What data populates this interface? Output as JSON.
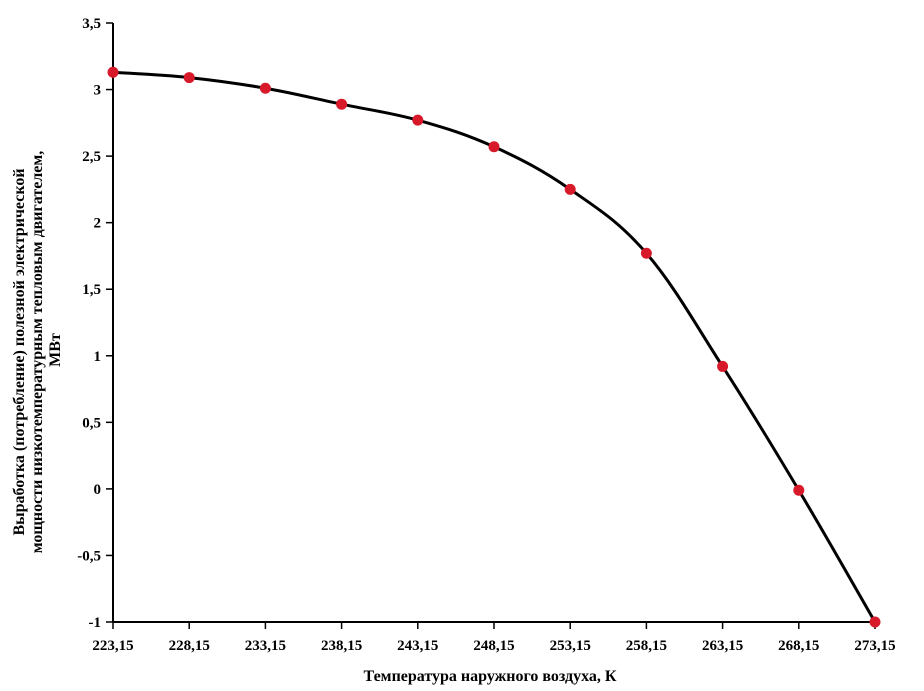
{
  "chart_data": {
    "type": "line",
    "title": "",
    "xlabel": "Температура наружного воздуха, К",
    "ylabel_lines": [
      "Выработка (потребление) полезной электрической",
      "мощности низкотемпературным тепловым двигателем,",
      "МВт"
    ],
    "x_tick_labels": [
      "223,15",
      "228,15",
      "233,15",
      "238,15",
      "243,15",
      "248,15",
      "253,15",
      "258,15",
      "263,15",
      "268,15",
      "273,15"
    ],
    "y_tick_labels": [
      "3,5",
      "3",
      "2,5",
      "2",
      "1,5",
      "1",
      "0,5",
      "0",
      "-0,5",
      "-1"
    ],
    "x": [
      223.15,
      228.15,
      233.15,
      238.15,
      243.15,
      248.15,
      253.15,
      258.15,
      263.15,
      268.15,
      273.15
    ],
    "series": [
      {
        "values": [
          3.13,
          3.09,
          3.01,
          2.89,
          2.77,
          2.57,
          2.25,
          1.77,
          0.92,
          -0.01,
          -1.0
        ],
        "line_color": "#000000",
        "marker_color": "#d7192a"
      }
    ],
    "xlim": [
      223.15,
      273.15
    ],
    "ylim": [
      -1,
      3.5
    ],
    "grid": false,
    "legend": "none"
  }
}
